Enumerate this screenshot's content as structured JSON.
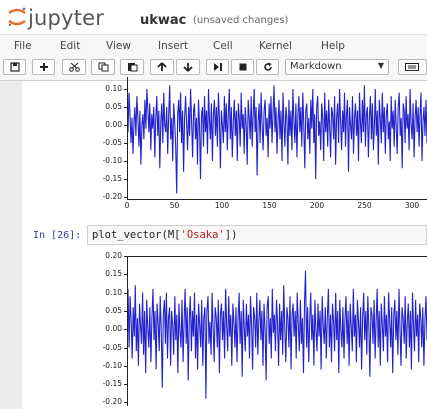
{
  "app": {
    "brand": "jupyter",
    "notebook_name": "ukwac",
    "status": "(unsaved changes)"
  },
  "menu": [
    "File",
    "Edit",
    "View",
    "Insert",
    "Cell",
    "Kernel",
    "Help"
  ],
  "toolbar": {
    "buttons": [
      "save-icon",
      "plus-icon",
      "cut-icon",
      "copy-icon",
      "paste-icon",
      "arrow-up-icon",
      "arrow-down-icon",
      "step-forward-icon",
      "stop-icon",
      "restart-icon"
    ],
    "cell_type": "Markdown",
    "keyboard": "keyboard-icon"
  },
  "cell": {
    "prompt": "In [26]:",
    "code_prefix": "plot_vector(M[",
    "code_string": "'Osaka'",
    "code_suffix": "])"
  },
  "colors": {
    "line": "#2222cc",
    "prompt": "#303f9f",
    "string": "#ba2121"
  },
  "chart_data": [
    {
      "type": "line",
      "y_tick_labels": [
        "0.10",
        "0.05",
        "0.00",
        "-0.05",
        "-0.10",
        "-0.15",
        "-0.20"
      ],
      "x_tick_labels": [
        "0",
        "50",
        "100",
        "150",
        "200",
        "250",
        "300"
      ],
      "xlim": [
        0,
        300
      ],
      "ylim": [
        -0.2,
        0.12
      ],
      "values": [
        0.06,
        -0.02,
        0.09,
        0.03,
        -0.05,
        0.02,
        -0.08,
        0.01,
        0.05,
        -0.03,
        0.08,
        0.02,
        -0.06,
        0.04,
        -0.11,
        0.0,
        0.03,
        -0.04,
        0.07,
        -0.01,
        0.1,
        0.04,
        -0.02,
        0.06,
        -0.07,
        0.03,
        -0.01,
        0.05,
        -0.09,
        0.02,
        0.08,
        -0.03,
        0.04,
        -0.12,
        0.01,
        0.06,
        -0.05,
        0.09,
        0.0,
        -0.02,
        0.05,
        -0.08,
        0.03,
        0.11,
        -0.04,
        0.02,
        -0.1,
        0.06,
        0.01,
        -0.06,
        -0.19,
        0.03,
        0.07,
        -0.02,
        0.09,
        -0.05,
        0.04,
        -0.13,
        0.02,
        0.08,
        0.0,
        -0.07,
        0.05,
        -0.03,
        0.1,
        0.01,
        -0.09,
        0.04,
        0.06,
        -0.04,
        0.02,
        -0.11,
        0.07,
        0.0,
        -0.15,
        0.03,
        0.05,
        -0.06,
        0.08,
        -0.02,
        0.04,
        -0.08,
        0.1,
        0.01,
        -0.04,
        0.06,
        -0.1,
        0.03,
        0.07,
        -0.03,
        0.05,
        -0.06,
        0.09,
        0.02,
        -0.12,
        0.04,
        0.0,
        -0.05,
        0.08,
        -0.02,
        0.06,
        -0.07,
        0.03,
        0.1,
        -0.04,
        0.05,
        -0.09,
        0.01,
        0.07,
        -0.03,
        0.04,
        -0.1,
        0.06,
        0.02,
        -0.06,
        0.09,
        -0.01,
        0.03,
        -0.08,
        0.05,
        0.0,
        -0.11,
        0.07,
        0.02,
        -0.04,
        0.08,
        -0.06,
        0.03,
        0.1,
        -0.02,
        0.05,
        -0.14,
        0.01,
        0.06,
        -0.05,
        0.09,
        0.0,
        -0.07,
        0.04,
        0.07,
        -0.03,
        0.02,
        -0.09,
        0.06,
        -0.01,
        0.08,
        -0.05,
        0.03,
        0.11,
        -0.02,
        0.05,
        -0.08,
        0.01,
        0.07,
        -0.04,
        0.04,
        -0.1,
        0.09,
        0.0,
        -0.06,
        0.05,
        0.02,
        -0.11,
        0.07,
        -0.03,
        0.04,
        -0.07,
        0.1,
        0.01,
        -0.05,
        0.06,
        -0.09,
        0.03,
        0.08,
        -0.02,
        0.05,
        -0.06,
        0.09,
        0.0,
        -0.12,
        0.04,
        0.06,
        -0.04,
        0.02,
        -0.08,
        0.07,
        -0.01,
        0.1,
        -0.05,
        0.03,
        -0.15,
        0.05,
        0.08,
        -0.03,
        0.01,
        -0.07,
        0.06,
        0.02,
        -0.1,
        0.09,
        -0.02,
        0.04,
        -0.06,
        0.07,
        0.0,
        -0.09,
        0.05,
        0.03,
        -0.04,
        0.08,
        -0.11,
        0.02,
        0.06,
        -0.05,
        0.1,
        0.01,
        -0.07,
        0.04,
        -0.02,
        0.09,
        -0.06,
        0.03,
        0.07,
        -0.13,
        0.05,
        0.0,
        -0.04,
        0.08,
        -0.08,
        0.02,
        0.06,
        -0.03,
        0.04,
        -0.1,
        0.09,
        0.01,
        -0.05,
        0.07,
        -0.02,
        0.11,
        -0.06,
        0.03,
        0.05,
        -0.09,
        0.02,
        0.08,
        -0.04,
        0.06,
        -0.07,
        0.0,
        0.1,
        -0.03,
        0.04,
        -0.11,
        0.07,
        0.02,
        -0.05,
        0.09,
        -0.02,
        0.05,
        -0.08,
        0.03,
        0.06,
        -0.04,
        0.01,
        -0.1,
        0.08,
        -0.01,
        0.04,
        -0.06,
        0.07,
        0.0,
        -0.08,
        0.05,
        0.09,
        -0.03,
        0.02,
        -0.12,
        0.06,
        0.04,
        -0.05,
        0.08,
        -0.01,
        0.03,
        -0.07,
        0.1,
        0.0,
        -0.04,
        0.06,
        -0.09,
        0.02,
        0.07,
        -0.02,
        0.05,
        -0.06,
        0.03,
        0.09,
        -0.1,
        0.01,
        0.05,
        -0.03,
        0.07,
        -0.05
      ]
    },
    {
      "type": "line",
      "y_tick_labels": [
        "0.20",
        "0.15",
        "0.10",
        "0.05",
        "0.00",
        "-0.05",
        "-0.10",
        "-0.15",
        "-0.20"
      ],
      "xlim": [
        0,
        300
      ],
      "ylim": [
        -0.2,
        0.2
      ],
      "values": [
        0.04,
        0.11,
        -0.05,
        0.09,
        0.02,
        -0.08,
        0.06,
        -0.02,
        0.12,
        -0.06,
        0.03,
        -0.1,
        0.07,
        0.01,
        -0.04,
        0.1,
        -0.07,
        0.05,
        -0.12,
        0.08,
        0.0,
        -0.05,
        0.06,
        -0.09,
        0.03,
        0.11,
        -0.03,
        0.05,
        -0.11,
        0.07,
        0.02,
        -0.06,
        0.09,
        -0.01,
        -0.16,
        0.04,
        0.08,
        -0.04,
        0.1,
        -0.08,
        0.03,
        0.06,
        -0.1,
        0.05,
        0.01,
        -0.07,
        0.09,
        -0.03,
        0.04,
        -0.12,
        0.07,
        0.0,
        -0.05,
        0.08,
        -0.09,
        0.02,
        0.11,
        -0.04,
        0.06,
        -0.14,
        0.03,
        0.09,
        -0.06,
        0.05,
        -0.02,
        0.1,
        -0.08,
        0.04,
        -0.11,
        0.07,
        0.01,
        -0.05,
        0.08,
        -0.1,
        0.03,
        0.06,
        -0.19,
        0.05,
        0.09,
        -0.04,
        0.02,
        -0.07,
        0.1,
        0.0,
        -0.09,
        0.06,
        0.03,
        -0.05,
        0.08,
        -0.12,
        0.04,
        0.07,
        -0.03,
        0.05,
        -0.08,
        0.11,
        0.01,
        -0.06,
        0.09,
        -0.02,
        0.04,
        -0.1,
        0.07,
        0.02,
        -0.05,
        0.06,
        -0.09,
        0.03,
        0.1,
        -0.04,
        0.05,
        -0.13,
        0.08,
        0.0,
        -0.06,
        0.07,
        -0.02,
        0.04,
        -0.08,
        0.09,
        0.01,
        -0.11,
        0.06,
        0.03,
        -0.05,
        0.1,
        -0.07,
        0.02,
        0.08,
        -0.03,
        0.05,
        -0.1,
        0.07,
        0.0,
        -0.14,
        0.06,
        0.09,
        -0.04,
        0.03,
        -0.08,
        0.11,
        -0.01,
        0.04,
        -0.06,
        0.08,
        0.02,
        -0.1,
        0.07,
        -0.03,
        0.05,
        -0.07,
        0.12,
        0.0,
        -0.09,
        0.06,
        0.03,
        -0.05,
        0.09,
        -0.11,
        0.04,
        0.07,
        -0.02,
        0.05,
        -0.08,
        0.1,
        0.01,
        -0.06,
        0.08,
        -0.04,
        0.03,
        -0.12,
        0.07,
        0.16,
        -0.05,
        0.06,
        -0.09,
        0.02,
        0.1,
        -0.03,
        0.04,
        -0.1,
        0.08,
        0.0,
        -0.06,
        0.07,
        -0.02,
        0.05,
        -0.11,
        0.09,
        0.01,
        -0.04,
        0.06,
        -0.08,
        0.03,
        0.11,
        -0.05,
        0.04,
        -0.09,
        0.07,
        0.02,
        -0.06,
        0.1,
        -0.03,
        0.05,
        -0.12,
        0.08,
        0.0,
        -0.05,
        0.06,
        -0.08,
        0.03,
        0.09,
        -0.04,
        0.05,
        -0.1,
        0.07,
        0.01,
        -0.06,
        0.11,
        -0.02,
        0.04,
        -0.09,
        0.08,
        0.02,
        -0.05,
        0.06,
        -0.11,
        0.03,
        0.1,
        -0.03,
        0.05,
        -0.07,
        0.09,
        0.0,
        -0.13,
        0.06,
        0.04,
        -0.04,
        0.08,
        -0.08,
        0.02,
        0.11,
        -0.05,
        0.05,
        -0.1,
        0.07,
        0.01,
        -0.06,
        0.09,
        -0.02,
        0.04,
        -0.09,
        0.1,
        0.03,
        -0.05,
        0.06,
        -0.12,
        0.04,
        0.08,
        -0.03,
        0.05,
        -0.07,
        0.11,
        0.0,
        -0.1,
        0.06,
        0.03,
        -0.04,
        0.09,
        -0.08,
        0.02,
        0.07,
        -0.05,
        0.05,
        -0.11,
        0.1,
        0.01,
        -0.06,
        0.08,
        -0.02,
        0.04,
        -0.09,
        0.07,
        0.03,
        -0.05,
        0.06,
        -0.1,
        0.02,
        0.09,
        -0.03
      ]
    }
  ]
}
